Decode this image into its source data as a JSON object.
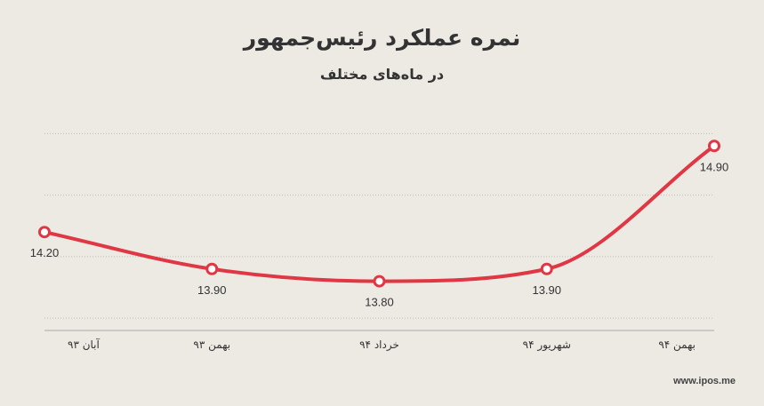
{
  "header": {
    "title": "نمره عملکرد رئیس‌جمهور",
    "subtitle": "در ماه‌های مختلف"
  },
  "footer": {
    "watermark": "www.ipos.me"
  },
  "colors": {
    "background": "#edeae4",
    "line": "#e03744",
    "grid": "#bfbcb6",
    "text": "#333333"
  },
  "chart_data": {
    "type": "line",
    "title": "نمره عملکرد رئیس‌جمهور",
    "subtitle": "در ماه‌های مختلف",
    "categories": [
      "آبان ۹۳",
      "بهمن ۹۳",
      "خرداد ۹۴",
      "شهریور ۹۴",
      "بهمن ۹۴"
    ],
    "series": [
      {
        "values": [
          14.2,
          13.9,
          13.8,
          13.9,
          14.9
        ],
        "data_labels": [
          "14.20",
          "13.90",
          "13.80",
          "13.90",
          "14.90"
        ]
      }
    ],
    "ylim": [
      13.4,
      15.4
    ],
    "gridlines": [
      13.5,
      14.0,
      14.5,
      15.0
    ],
    "grid": true,
    "smooth": true,
    "legend": false
  }
}
